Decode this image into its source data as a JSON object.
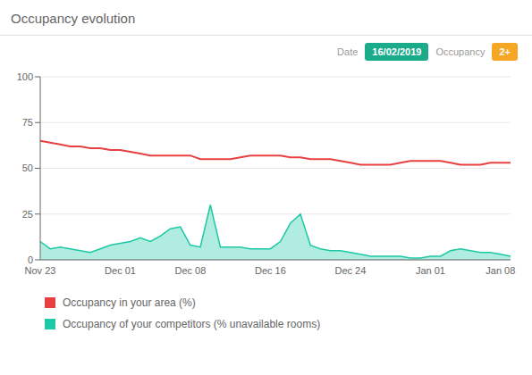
{
  "chart_data": {
    "type": "line",
    "title": "Occupancy evolution",
    "annotations": [
      {
        "label": "Date",
        "text": "16/02/2019",
        "color": "#1aab8a"
      },
      {
        "label": "Occupancy",
        "text": "2+",
        "color": "#f5a623"
      }
    ],
    "categories": [
      "Nov 23",
      null,
      null,
      null,
      null,
      null,
      null,
      null,
      "Dec 01",
      null,
      null,
      null,
      null,
      null,
      null,
      "Dec 08",
      null,
      null,
      null,
      null,
      null,
      null,
      null,
      "Dec 16",
      null,
      null,
      null,
      null,
      null,
      null,
      null,
      "Dec 24",
      null,
      null,
      null,
      null,
      null,
      null,
      null,
      "Jan 01",
      null,
      null,
      null,
      null,
      null,
      null,
      "Jan 08",
      null
    ],
    "series": [
      {
        "name": "Occupancy in your area (%)",
        "type": "line",
        "color": "#e84040",
        "values": [
          65,
          64,
          63,
          62,
          62,
          61,
          61,
          60,
          60,
          59,
          58,
          57,
          57,
          57,
          57,
          57,
          55,
          55,
          55,
          55,
          56,
          57,
          57,
          57,
          57,
          56,
          56,
          55,
          55,
          55,
          54,
          53,
          52,
          52,
          52,
          52,
          53,
          54,
          54,
          54,
          54,
          53,
          52,
          52,
          52,
          53,
          53,
          53
        ]
      },
      {
        "name": "Occupancy of your competitors (% unavailable rooms)",
        "type": "area",
        "color": "#1dc9a4",
        "values": [
          10,
          6,
          7,
          6,
          5,
          4,
          6,
          8,
          9,
          10,
          12,
          10,
          13,
          17,
          18,
          8,
          7,
          30,
          7,
          7,
          7,
          6,
          6,
          6,
          10,
          20,
          25,
          8,
          6,
          5,
          5,
          4,
          3,
          2,
          2,
          2,
          2,
          1,
          1,
          2,
          2,
          5,
          6,
          5,
          4,
          4,
          3,
          2
        ]
      }
    ],
    "ylim": [
      0,
      100
    ],
    "yticks": [
      0,
      25,
      50,
      75,
      100
    ],
    "grid": true
  }
}
